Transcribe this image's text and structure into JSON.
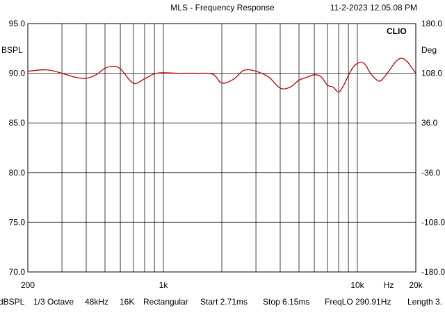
{
  "header": {
    "title": "MLS - Frequency Response",
    "date": "11-2-2023 12.05.08 PM"
  },
  "brand": "CLIO",
  "footer": {
    "unit": "dBSPL",
    "smoothing": "1/3 Octave",
    "sample_rate": "48kHz",
    "fft_size": "16K",
    "window": "Rectangular",
    "start": "Start 2.71ms",
    "stop": "Stop 6.15ms",
    "freq_lo": "FreqLO 290.91Hz",
    "length": "Length 3."
  },
  "chart_data": {
    "type": "line",
    "xscale": "log",
    "xlim": [
      200,
      20000
    ],
    "x_ticks": [
      {
        "value": 200,
        "label": "200"
      },
      {
        "value": 1000,
        "label": "1k"
      },
      {
        "value": 10000,
        "label": "10k"
      },
      {
        "value": 20000,
        "label": "20k"
      }
    ],
    "x_unit_label": "Hz",
    "left_axis": {
      "label": "BSPL",
      "ylim": [
        70,
        95
      ],
      "ticks": [
        "95.0",
        "90.0",
        "85.0",
        "80.0",
        "75.0",
        "70.0"
      ]
    },
    "right_axis": {
      "label": "Deg",
      "ylim": [
        -180,
        180
      ],
      "ticks": [
        "180.0",
        "108.0",
        "36.0",
        "-36.0",
        "-108.0",
        "-180.0"
      ]
    },
    "grid": true,
    "series": [
      {
        "color": "#c00000",
        "x": [
          200,
          250,
          300,
          350,
          400,
          450,
          500,
          550,
          600,
          700,
          800,
          900,
          1000,
          1200,
          1500,
          1800,
          2000,
          2300,
          2600,
          3000,
          3500,
          4000,
          4500,
          5000,
          5500,
          6000,
          6500,
          7000,
          7500,
          8000,
          8500,
          9000,
          9500,
          10000,
          10500,
          11000,
          11500,
          12000,
          13000,
          14000,
          15000,
          16000,
          17000,
          18000,
          19000,
          20000
        ],
        "y": [
          90.2,
          90.35,
          90.0,
          89.6,
          89.5,
          89.85,
          90.5,
          90.7,
          90.45,
          89.0,
          89.45,
          89.95,
          90.05,
          90.0,
          90.0,
          89.9,
          89.0,
          89.4,
          90.3,
          90.2,
          89.6,
          88.5,
          88.6,
          89.3,
          89.6,
          89.85,
          89.65,
          88.8,
          88.6,
          88.1,
          88.8,
          89.8,
          90.6,
          91.0,
          91.1,
          90.85,
          90.2,
          89.7,
          89.2,
          89.8,
          90.6,
          91.3,
          91.5,
          91.2,
          90.6,
          90.0
        ]
      }
    ]
  }
}
